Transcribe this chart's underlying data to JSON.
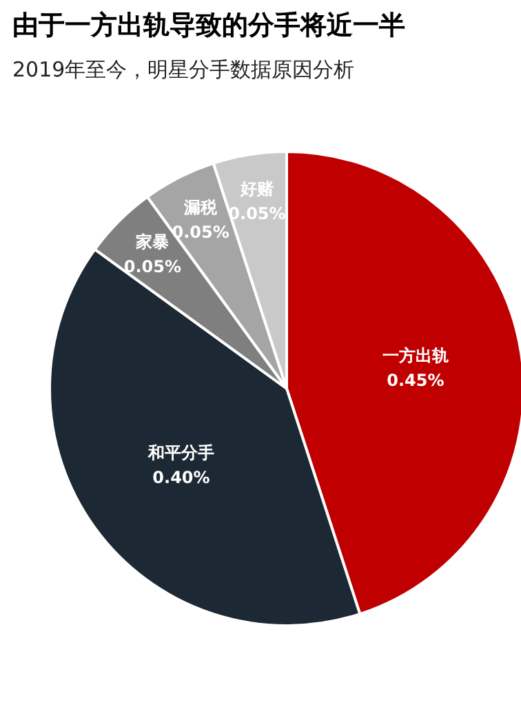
{
  "chart_data": {
    "type": "pie",
    "title": "由于一方出轨导致的分手将近一半",
    "subtitle": "2019年至今，明星分手数据原因分析",
    "categories": [
      "一方出轨",
      "和平分手",
      "家暴",
      "漏税",
      "好赌"
    ],
    "values": [
      0.45,
      0.4,
      0.05,
      0.05,
      0.05
    ],
    "value_labels": [
      "0.45%",
      "0.40%",
      "0.05%",
      "0.05%",
      "0.05%"
    ],
    "colors": [
      "#c00000",
      "#1c2833",
      "#7f7f7f",
      "#a5a5a5",
      "#c9c9c9"
    ],
    "legend": false
  }
}
